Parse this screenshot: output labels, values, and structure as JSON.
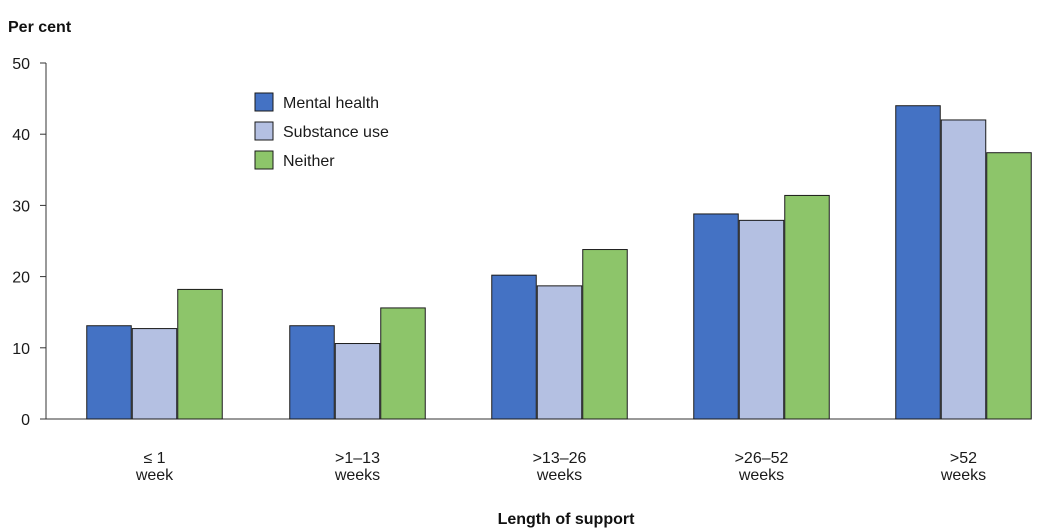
{
  "chart_data": {
    "type": "bar",
    "ylabel": "Per cent",
    "xlabel": "Length of support",
    "ylim": [
      0,
      50
    ],
    "yticks": [
      0,
      10,
      20,
      30,
      40,
      50
    ],
    "grid": false,
    "legend_position": "top-left",
    "categories": [
      [
        "≤ 1",
        "week"
      ],
      [
        ">1–13",
        "weeks"
      ],
      [
        ">13–26",
        "weeks"
      ],
      [
        ">26–52",
        "weeks"
      ],
      [
        ">52",
        "weeks"
      ]
    ],
    "series": [
      {
        "name": "Mental health",
        "color": "#4472C4",
        "values": [
          13.1,
          13.1,
          20.2,
          28.8,
          44.0
        ]
      },
      {
        "name": "Substance use",
        "color": "#B4C0E2",
        "values": [
          12.7,
          10.6,
          18.7,
          27.9,
          42.0
        ]
      },
      {
        "name": "Neither",
        "color": "#8DC56A",
        "values": [
          18.2,
          15.6,
          23.8,
          31.4,
          37.4
        ]
      }
    ]
  }
}
